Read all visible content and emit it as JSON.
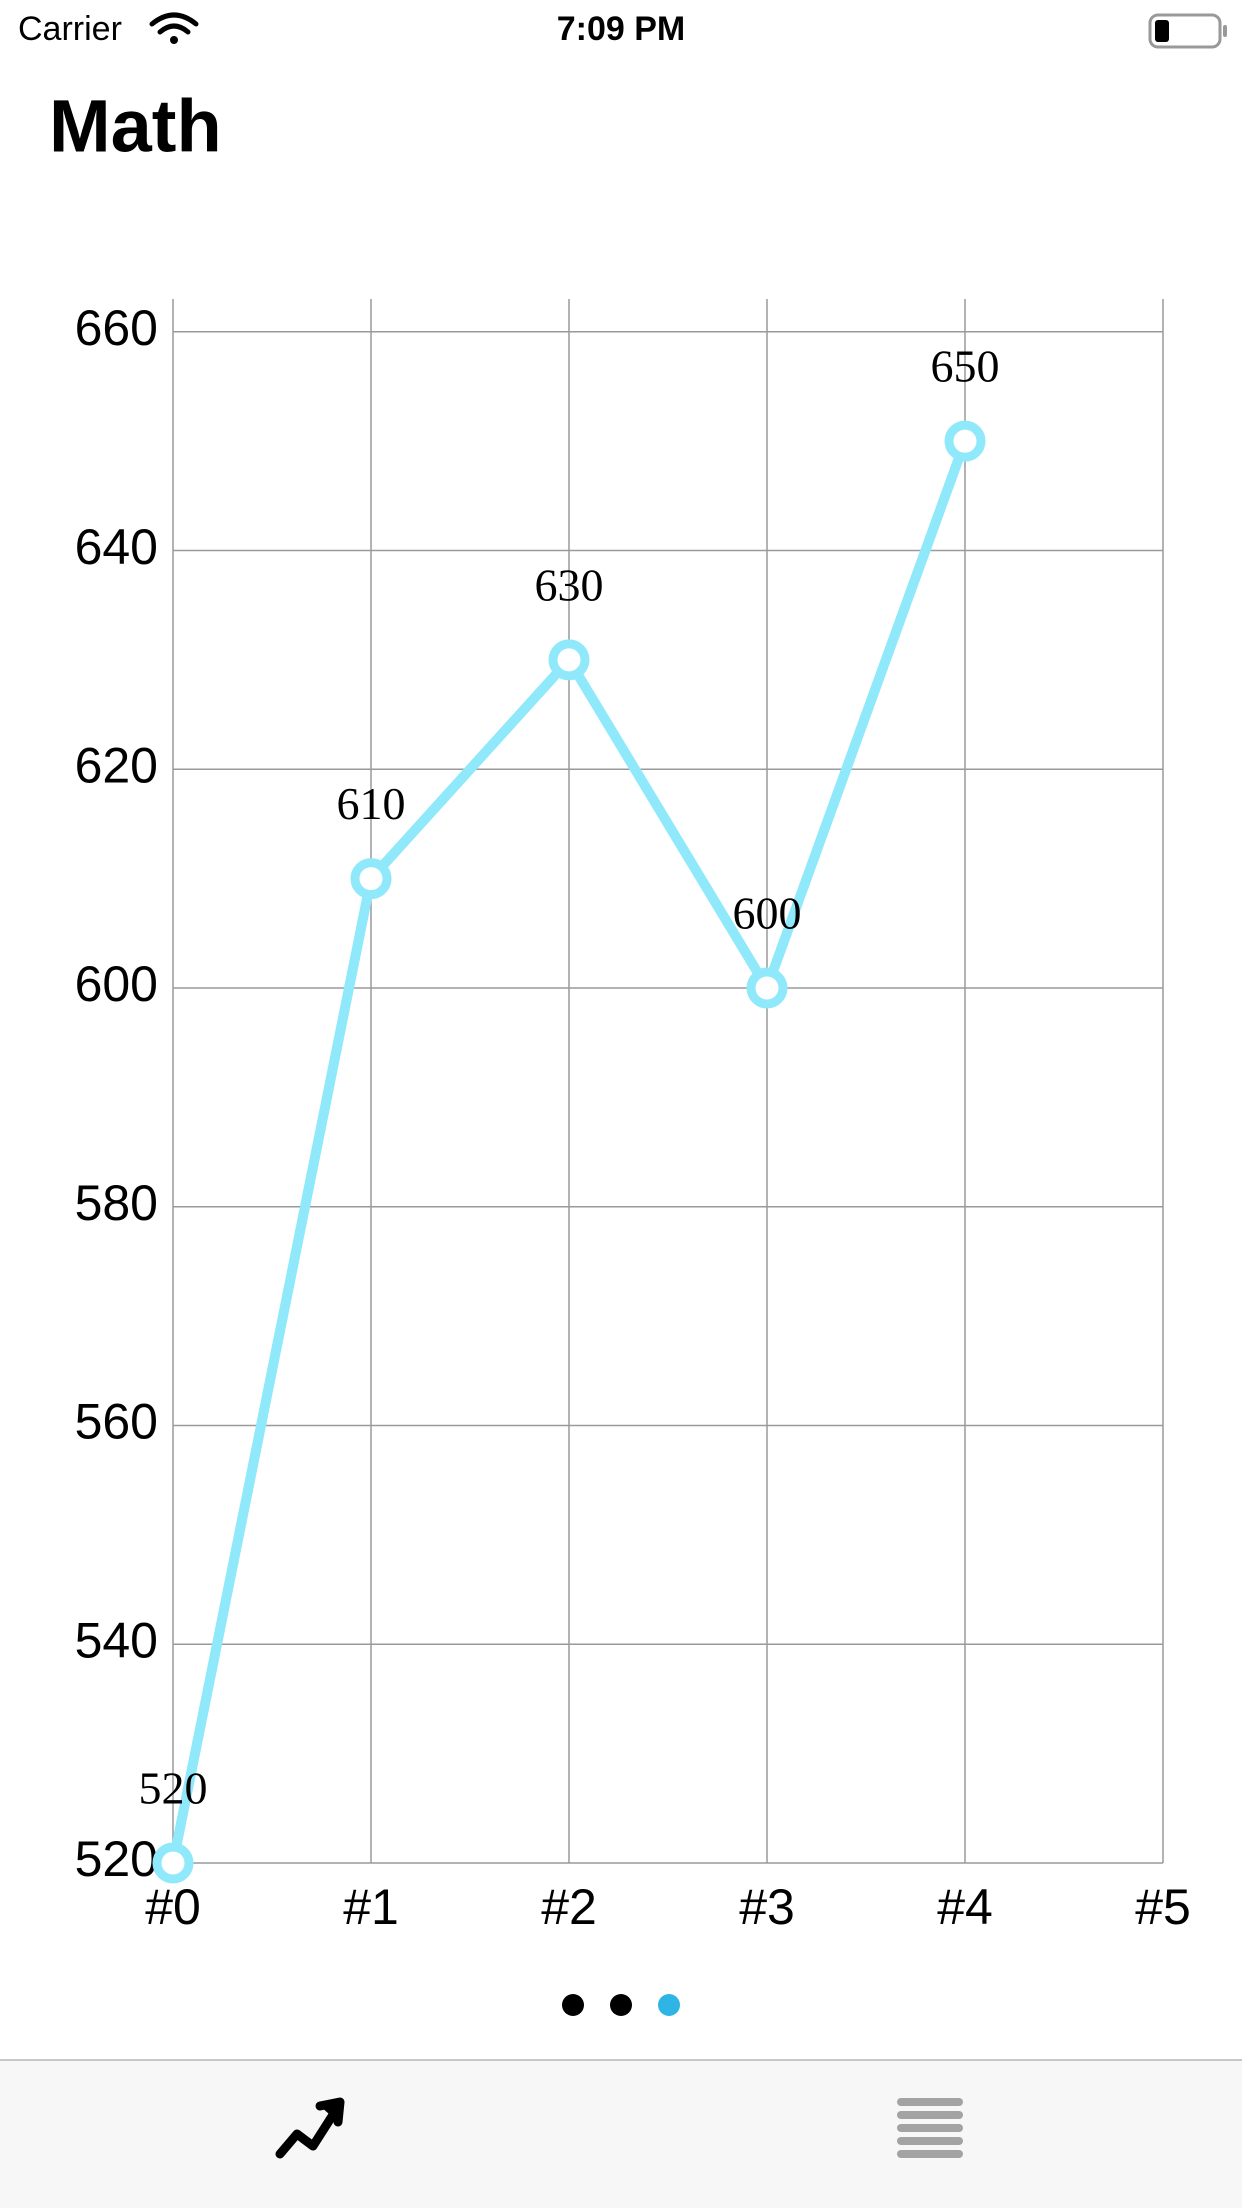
{
  "status_bar": {
    "carrier": "Carrier",
    "time": "7:09 PM"
  },
  "header": {
    "title": "Math"
  },
  "chart_data": {
    "type": "line",
    "categories": [
      "#0",
      "#1",
      "#2",
      "#3",
      "#4",
      "#5"
    ],
    "series": [
      {
        "color": "#8fe9fb",
        "values": [
          520,
          610,
          630,
          600,
          650,
          null
        ]
      }
    ],
    "ylim": [
      520,
      663
    ],
    "yticks": [
      520,
      540,
      560,
      580,
      600,
      620,
      640,
      660
    ],
    "grid": true
  }
}
